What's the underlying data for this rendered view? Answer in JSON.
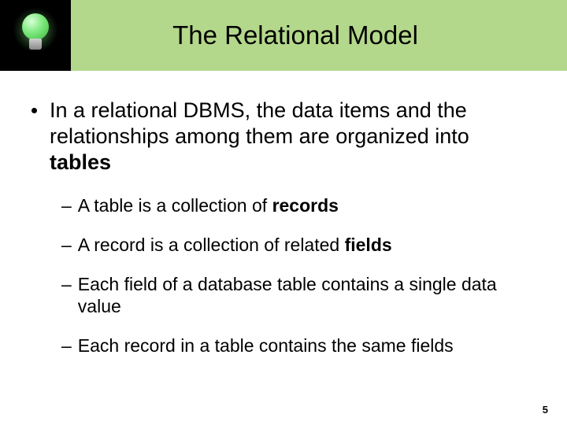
{
  "header": {
    "title": "The Relational Model",
    "bar_color": "#b4d88b",
    "icon_bg": "#000000"
  },
  "main_bullet": {
    "pre": "In a relational DBMS, the data items and the relationships among them are organized into ",
    "bold": "tables"
  },
  "sub_bullets": [
    {
      "pre": "A table is a collection of ",
      "bold": "records",
      "post": ""
    },
    {
      "pre": "A record is a collection of related ",
      "bold": "fields",
      "post": ""
    },
    {
      "pre": "Each field of a database table contains a single data value",
      "bold": "",
      "post": ""
    },
    {
      "pre": "Each record in a table contains the same fields",
      "bold": "",
      "post": ""
    }
  ],
  "page_number": "5",
  "styles": {
    "title_fontsize": 33,
    "main_fontsize": 27,
    "sub_fontsize": 23,
    "text_color": "#000000",
    "background_color": "#ffffff"
  }
}
